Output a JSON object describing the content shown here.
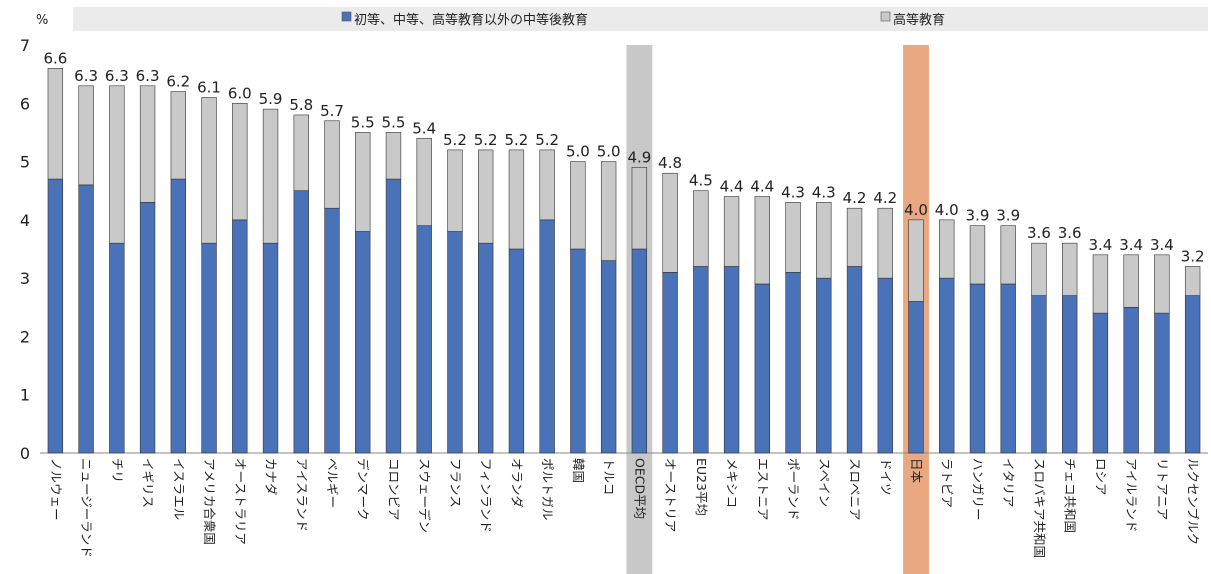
{
  "chart_data": {
    "type": "bar",
    "stacked": true,
    "unit_label": "%",
    "ylim": [
      0,
      7
    ],
    "yticks": [
      0,
      1,
      2,
      3,
      4,
      5,
      6,
      7
    ],
    "grid": false,
    "legend_position": "top",
    "categories": [
      "ノルウェー",
      "ニュージーランド",
      "チリ",
      "イギリス",
      "イスラエル",
      "アメリカ合衆国",
      "オーストラリア",
      "カナダ",
      "アイスランド",
      "ベルギー",
      "デンマーク",
      "コロンビア",
      "スウェーデン",
      "フランス",
      "フィンランド",
      "オランダ",
      "ポルトガル",
      "韓国",
      "トルコ",
      "OECD平均",
      "オーストリア",
      "EU23平均",
      "メキシコ",
      "エストニア",
      "ポーランド",
      "スペイン",
      "スロベニア",
      "ドイツ",
      "日本",
      "ラトビア",
      "ハンガリー",
      "イタリア",
      "スロバキア共和国",
      "チェコ共和国",
      "ロシア",
      "アイルランド",
      "リトアニア",
      "ルクセンブルク"
    ],
    "series": [
      {
        "name": "初等、中等、高等教育以外の中等後教育",
        "color": "#4a72b8",
        "values": [
          4.7,
          4.6,
          3.6,
          4.3,
          4.7,
          3.6,
          4.0,
          3.6,
          4.5,
          4.2,
          3.8,
          4.7,
          3.9,
          3.8,
          3.6,
          3.5,
          4.0,
          3.5,
          3.3,
          3.5,
          3.1,
          3.2,
          3.2,
          2.9,
          3.1,
          3.0,
          3.2,
          3.0,
          2.6,
          3.0,
          2.9,
          2.9,
          2.7,
          2.7,
          2.4,
          2.5,
          2.4,
          2.7
        ]
      },
      {
        "name": "高等教育",
        "color": "#c9c9c9",
        "values": [
          1.9,
          1.7,
          2.7,
          2.0,
          1.5,
          2.5,
          2.0,
          2.3,
          1.3,
          1.5,
          1.7,
          0.8,
          1.5,
          1.4,
          1.6,
          1.7,
          1.2,
          1.5,
          1.7,
          1.4,
          1.7,
          1.3,
          1.2,
          1.5,
          1.2,
          1.3,
          1.0,
          1.2,
          1.4,
          1.0,
          1.0,
          1.0,
          0.9,
          0.9,
          1.0,
          0.9,
          1.0,
          0.5
        ]
      }
    ],
    "totals": [
      "6.6",
      "6.3",
      "6.3",
      "6.3",
      "6.2",
      "6.1",
      "6.0",
      "5.9",
      "5.8",
      "5.7",
      "5.5",
      "5.5",
      "5.4",
      "5.2",
      "5.2",
      "5.2",
      "5.2",
      "5.0",
      "5.0",
      "4.9",
      "4.8",
      "4.5",
      "4.4",
      "4.4",
      "4.3",
      "4.3",
      "4.2",
      "4.2",
      "4.0",
      "4.0",
      "3.9",
      "3.9",
      "3.6",
      "3.6",
      "3.4",
      "3.4",
      "3.4",
      "3.2"
    ],
    "highlights": [
      {
        "category": "OECD平均",
        "color": "#c8c8c8"
      },
      {
        "category": "日本",
        "color": "#e9a882"
      }
    ],
    "legend_bar_color": "#ebebeb"
  }
}
